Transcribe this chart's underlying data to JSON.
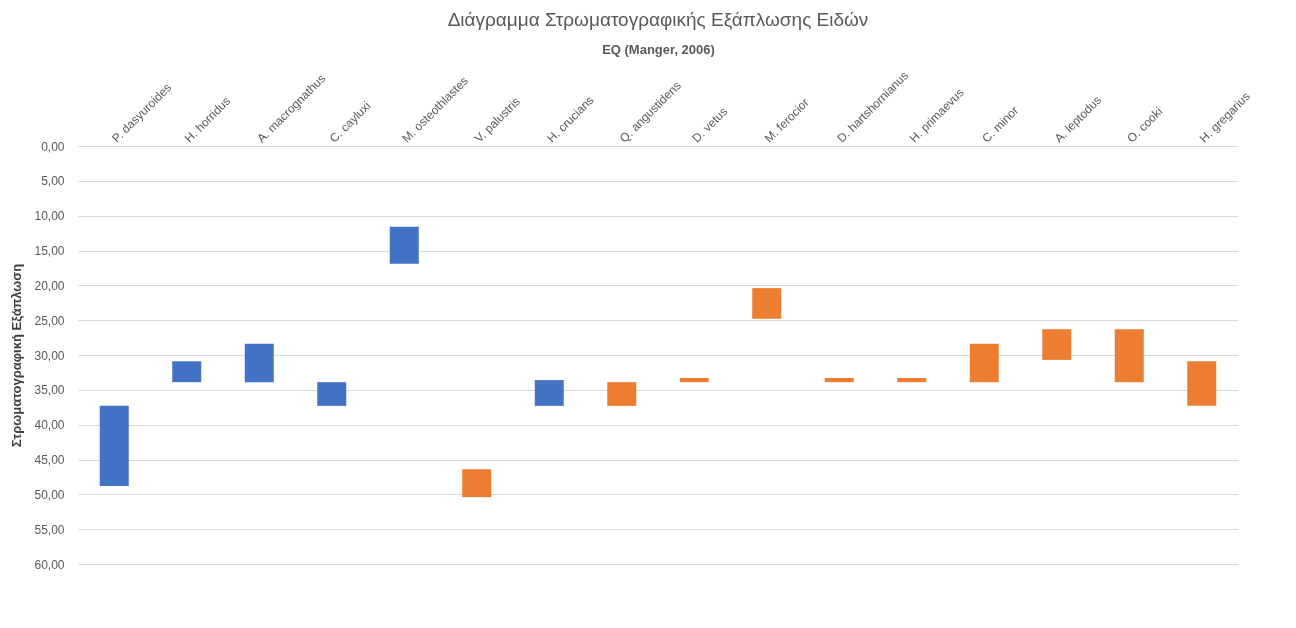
{
  "chart_data": {
    "type": "bar",
    "title": "Διάγραμμα Στρωματογραφικής Εξάπλωσης Ειδών",
    "xlabel": "EQ (Manger, 2006)",
    "ylabel": "Στρωματογραφική Εξάπλωση",
    "categories": [
      "P. dasyuroides",
      "H. horridus",
      "A. macrognathus",
      "C. cayluxi",
      "M. osteothlastes",
      "V. palustris",
      "H. crucians",
      "Q. angustidens",
      "D. vetus",
      "M. ferocior",
      "D. hartshornianus",
      "H. primaevus",
      "C. minor",
      "A. leptodus",
      "O. cooki",
      "H. gregarius"
    ],
    "base": [
      37.3,
      30.9,
      28.4,
      33.9,
      11.6,
      46.4,
      33.6,
      33.9,
      33.3,
      20.4,
      33.3,
      33.3,
      28.4,
      26.3,
      26.3,
      30.9
    ],
    "values": [
      11.5,
      3.0,
      5.5,
      3.4,
      5.3,
      4.0,
      3.7,
      3.4,
      0.6,
      4.4,
      0.6,
      0.6,
      5.5,
      4.4,
      7.6,
      6.4
    ],
    "colors": [
      "#4472c4",
      "#4472c4",
      "#4472c4",
      "#4472c4",
      "#4472c4",
      "#ed7d31",
      "#4472c4",
      "#ed7d31",
      "#ed7d31",
      "#ed7d31",
      "#ed7d31",
      "#ed7d31",
      "#ed7d31",
      "#ed7d31",
      "#ed7d31",
      "#ed7d31"
    ],
    "ylim": [
      60,
      0
    ],
    "yticks": [
      {
        "value": 0,
        "label": "0,00"
      },
      {
        "value": 5,
        "label": "5,00"
      },
      {
        "value": 10,
        "label": "10,00"
      },
      {
        "value": 15,
        "label": "15,00"
      },
      {
        "value": 20,
        "label": "20,00"
      },
      {
        "value": 25,
        "label": "25,00"
      },
      {
        "value": 30,
        "label": "30,00"
      },
      {
        "value": 35,
        "label": "35,00"
      },
      {
        "value": 40,
        "label": "40,00"
      },
      {
        "value": 45,
        "label": "45,00"
      },
      {
        "value": 50,
        "label": "50,00"
      },
      {
        "value": 55,
        "label": "55,00"
      },
      {
        "value": 60,
        "label": "60,00"
      }
    ],
    "grid": "y"
  }
}
